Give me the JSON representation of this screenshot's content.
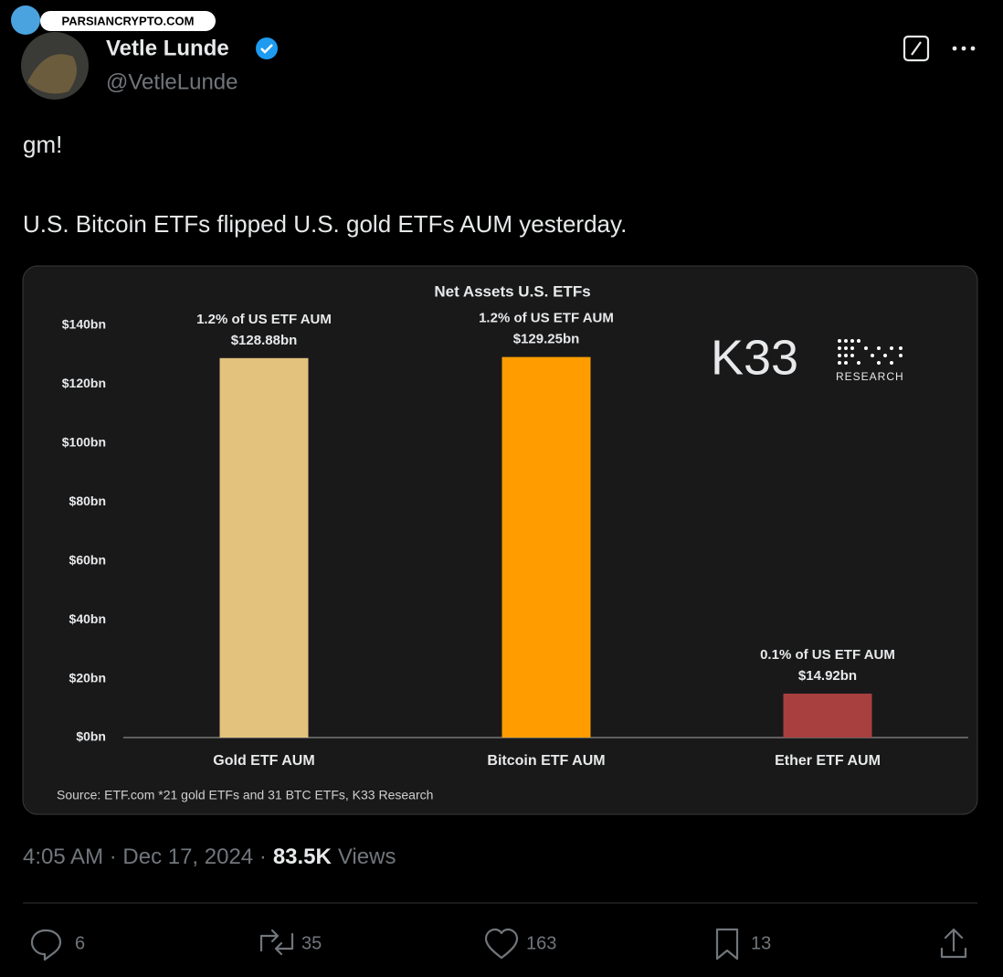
{
  "watermark": "PARSIANCRYPTO.COM",
  "author": {
    "name": "Vetle Lunde",
    "handle": "@VetleLunde"
  },
  "tweet": {
    "lines": [
      "gm!",
      "U.S. Bitcoin ETFs flipped U.S. gold ETFs AUM yesterday."
    ]
  },
  "chart_data": {
    "type": "bar",
    "title": "Net Assets U.S. ETFs",
    "categories": [
      "Gold ETF AUM",
      "Bitcoin ETF AUM",
      "Ether ETF AUM"
    ],
    "values": [
      128.88,
      129.25,
      14.92
    ],
    "value_labels": [
      "$128.88bn",
      "$129.25bn",
      "$14.92bn"
    ],
    "annotations": [
      "1.2% of US ETF AUM",
      "1.2% of US ETF AUM",
      "0.1% of US ETF AUM"
    ],
    "colors": [
      "#e2c27d",
      "#ff9d00",
      "#a8403f"
    ],
    "ylim": [
      0,
      140
    ],
    "yticks": [
      {
        "value": 0,
        "label": "$0bn"
      },
      {
        "value": 20,
        "label": "$20bn"
      },
      {
        "value": 40,
        "label": "$40bn"
      },
      {
        "value": 60,
        "label": "$60bn"
      },
      {
        "value": 80,
        "label": "$80bn"
      },
      {
        "value": 100,
        "label": "$100bn"
      },
      {
        "value": 120,
        "label": "$120bn"
      },
      {
        "value": 140,
        "label": "$140bn"
      }
    ],
    "grid": false,
    "source": "Source: ETF.com *21 gold ETFs and 31 BTC ETFs, K33 Research",
    "brand": {
      "name": "K33",
      "sub": "RESEARCH"
    }
  },
  "footer": {
    "timestamp": "4:05 AM · Dec 17, 2024 ·",
    "views": "83.5K",
    "views_label": "Views"
  },
  "actions": {
    "replies": 6,
    "reposts": 35,
    "likes": 163,
    "bookmarks": 13
  }
}
